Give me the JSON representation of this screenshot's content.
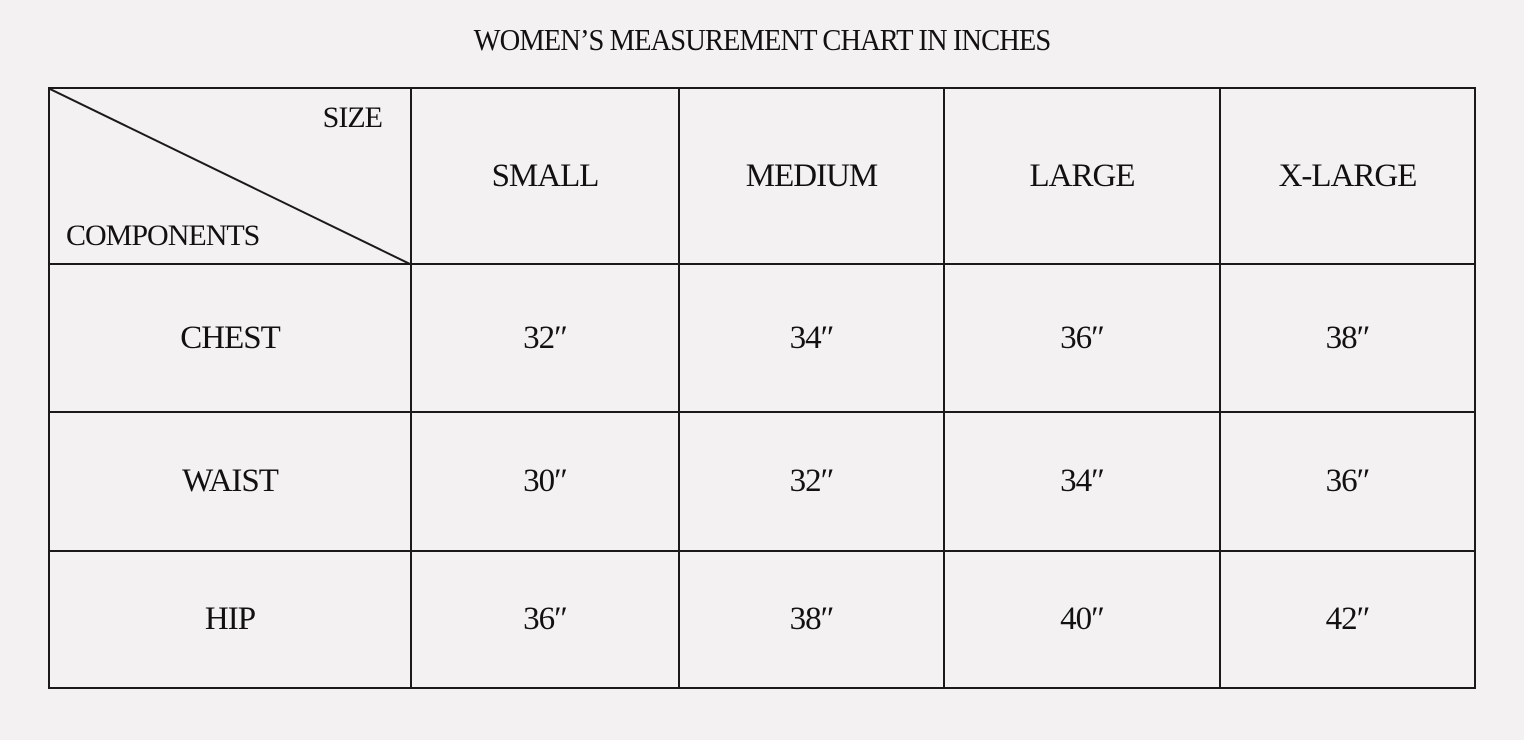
{
  "title": "WOMEN’S MEASUREMENT CHART IN INCHES",
  "corner": {
    "size_label": "SIZE",
    "components_label": "COMPONENTS"
  },
  "sizes": [
    "SMALL",
    "MEDIUM",
    "LARGE",
    "X-LARGE"
  ],
  "rows": [
    {
      "component": "CHEST",
      "values": [
        "32″",
        "34″",
        "36″",
        "38″"
      ]
    },
    {
      "component": "WAIST",
      "values": [
        "30″",
        "32″",
        "34″",
        "36″"
      ]
    },
    {
      "component": "HIP",
      "values": [
        "36″",
        "38″",
        "40″",
        "42″"
      ]
    }
  ]
}
